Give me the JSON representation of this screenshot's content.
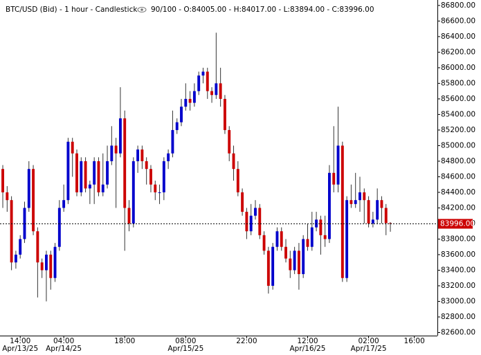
{
  "chart_data": {
    "type": "candlestick",
    "title": "BTC/USD (Bid) - 1 hour - Candlestick",
    "status": "90/100 - O:84005.00 - H:84017.00 - L:83894.00 - C:83996.00",
    "up_color": "#0000cc",
    "down_color": "#cc0000",
    "wick_color": "#333333",
    "x": [
      0,
      1,
      2,
      3,
      4,
      5,
      6,
      7,
      8,
      9,
      10,
      11,
      12,
      13,
      14,
      15,
      16,
      17,
      18,
      19,
      20,
      21,
      22,
      23,
      24,
      25,
      26,
      27,
      28,
      29,
      30,
      31,
      32,
      33,
      34,
      35,
      36,
      37,
      38,
      39,
      40,
      41,
      42,
      43,
      44,
      45,
      46,
      47,
      48,
      49,
      50,
      51,
      52,
      53,
      54,
      55,
      56,
      57,
      58,
      59,
      60,
      61,
      62,
      63,
      64,
      65,
      66,
      67,
      68,
      69,
      70,
      71,
      72,
      73,
      74,
      75,
      76,
      77,
      78,
      79,
      80,
      81,
      82,
      83,
      84,
      85,
      86,
      87,
      88,
      89
    ],
    "open": [
      84700,
      84400,
      84300,
      83500,
      83600,
      83800,
      84200,
      84700,
      83900,
      83500,
      83400,
      83600,
      83300,
      83700,
      84200,
      84300,
      85050,
      84900,
      84400,
      84800,
      84450,
      84500,
      84800,
      84400,
      84500,
      84800,
      85000,
      84900,
      85350,
      84200,
      84000,
      84800,
      84950,
      84800,
      84700,
      84500,
      84400,
      84400,
      84800,
      84900,
      85200,
      85300,
      85500,
      85600,
      85550,
      85700,
      85900,
      85950,
      85700,
      85650,
      85800,
      85600,
      85200,
      84900,
      84700,
      84400,
      84150,
      83900,
      84100,
      84200,
      83850,
      83650,
      83200,
      83700,
      83900,
      83700,
      83550,
      83400,
      83650,
      83350,
      83800,
      83700,
      83950,
      84050,
      83850,
      83800,
      84650,
      84500,
      85000,
      83300,
      84300,
      84250,
      84300,
      84400,
      84300,
      84000,
      84050,
      84300,
      84200,
      84005
    ],
    "high": [
      84750,
      84480,
      84350,
      83650,
      83850,
      84280,
      84800,
      84750,
      83950,
      83550,
      83650,
      83650,
      83750,
      84300,
      84500,
      85100,
      85100,
      84950,
      84850,
      84850,
      84550,
      84850,
      84850,
      84900,
      85000,
      85250,
      85100,
      85750,
      85450,
      84300,
      84850,
      85000,
      85000,
      84850,
      84750,
      84550,
      84500,
      84850,
      84950,
      85450,
      85350,
      85600,
      85800,
      85700,
      85800,
      85950,
      86000,
      86000,
      85750,
      86450,
      86000,
      85650,
      85250,
      85000,
      84800,
      84450,
      84200,
      84250,
      84300,
      84250,
      83900,
      83700,
      83750,
      83950,
      83950,
      83800,
      83650,
      83700,
      83750,
      83850,
      84000,
      84150,
      84150,
      84100,
      84100,
      84750,
      85250,
      85500,
      85050,
      84350,
      84500,
      84650,
      84600,
      84450,
      84350,
      84150,
      84450,
      84350,
      84250,
      84017
    ],
    "low": [
      84200,
      84150,
      83400,
      83420,
      83550,
      83750,
      84150,
      83850,
      83050,
      83300,
      83000,
      83150,
      83250,
      83650,
      84150,
      84250,
      84600,
      84350,
      84350,
      84400,
      84250,
      84250,
      84350,
      84350,
      84450,
      84750,
      84200,
      84850,
      83650,
      83900,
      83950,
      84650,
      84700,
      84500,
      84400,
      84300,
      84250,
      84300,
      84700,
      84850,
      85150,
      85250,
      85450,
      85450,
      85500,
      85650,
      85800,
      85600,
      85550,
      85600,
      85500,
      85150,
      84800,
      84550,
      84350,
      84100,
      83800,
      83850,
      84050,
      83800,
      83600,
      83100,
      83150,
      83650,
      83650,
      83500,
      83300,
      83350,
      83150,
      83300,
      83650,
      83650,
      83900,
      83600,
      83700,
      83750,
      84400,
      84400,
      83250,
      83250,
      84200,
      84200,
      84150,
      84000,
      83950,
      83950,
      84000,
      84000,
      83850,
      83894
    ],
    "close": [
      84400,
      84300,
      83500,
      83600,
      83800,
      84200,
      84700,
      83900,
      83500,
      83400,
      83600,
      83300,
      83700,
      84200,
      84300,
      85050,
      84900,
      84400,
      84800,
      84450,
      84500,
      84800,
      84400,
      84500,
      84800,
      85000,
      84900,
      85350,
      84200,
      84000,
      84800,
      84950,
      84800,
      84700,
      84500,
      84400,
      84400,
      84800,
      84900,
      85200,
      85300,
      85500,
      85600,
      85550,
      85700,
      85900,
      85950,
      85700,
      85650,
      85800,
      85600,
      85200,
      84900,
      84700,
      84400,
      84150,
      83900,
      84100,
      84200,
      83850,
      83650,
      83200,
      83700,
      83900,
      83700,
      83550,
      83400,
      83650,
      83350,
      83800,
      83700,
      83950,
      84050,
      83850,
      83800,
      84650,
      84500,
      85000,
      83300,
      84300,
      84250,
      84300,
      84400,
      84300,
      84000,
      84050,
      84300,
      84200,
      84005,
      83996
    ],
    "xlim": [
      -0.64,
      99.8
    ],
    "xticks": [
      {
        "value": 4,
        "label": "14:00",
        "sublabel": "Apr/13/25"
      },
      {
        "value": 14,
        "label": "04:00",
        "sublabel": "Apr/14/25"
      },
      {
        "value": 28,
        "label": "18:00"
      },
      {
        "value": 42,
        "label": "08:00",
        "sublabel": "Apr/15/25"
      },
      {
        "value": 56,
        "label": "22:00"
      },
      {
        "value": 70,
        "label": "12:00",
        "sublabel": "Apr/16/25"
      },
      {
        "value": 84,
        "label": "02:00",
        "sublabel": "Apr/17/25"
      },
      {
        "value": 94.5,
        "label": "16:00"
      }
    ],
    "ylim": [
      82560,
      86870
    ],
    "yticks": [
      {
        "value": 82600,
        "label": "82600.00"
      },
      {
        "value": 82800,
        "label": "82800.00"
      },
      {
        "value": 83000,
        "label": "83000.00"
      },
      {
        "value": 83200,
        "label": "83200.00"
      },
      {
        "value": 83400,
        "label": "83400.00"
      },
      {
        "value": 83600,
        "label": "83600.00"
      },
      {
        "value": 83800,
        "label": "83800.00"
      },
      {
        "value": 84000,
        "label": "84000.00"
      },
      {
        "value": 84200,
        "label": "84200.00"
      },
      {
        "value": 84400,
        "label": "84400.00"
      },
      {
        "value": 84600,
        "label": "84600.00"
      },
      {
        "value": 84800,
        "label": "84800.00"
      },
      {
        "value": 85000,
        "label": "85000.00"
      },
      {
        "value": 85200,
        "label": "85200.00"
      },
      {
        "value": 85400,
        "label": "85400.00"
      },
      {
        "value": 85600,
        "label": "85600.00"
      },
      {
        "value": 85800,
        "label": "85800.00"
      },
      {
        "value": 86000,
        "label": "86000.00"
      },
      {
        "value": 86200,
        "label": "86200.00"
      },
      {
        "value": 86400,
        "label": "86400.00"
      },
      {
        "value": 86600,
        "label": "86600.00"
      },
      {
        "value": 86800,
        "label": "86800.00"
      }
    ],
    "last_price": {
      "value": 83996,
      "label": "83996.00",
      "color": "#cc0000"
    },
    "grid": false
  }
}
